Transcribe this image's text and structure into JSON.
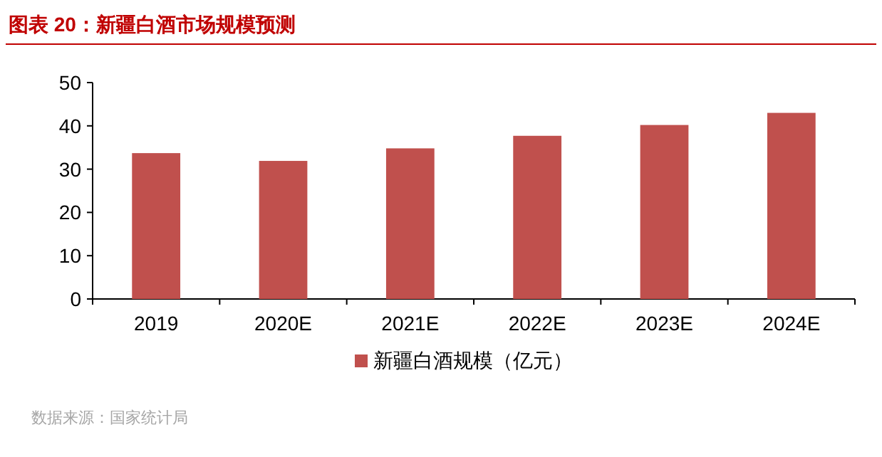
{
  "chart_data": {
    "type": "bar",
    "title": "图表 20：新疆白酒市场规模预测",
    "categories": [
      "2019",
      "2020E",
      "2021E",
      "2022E",
      "2023E",
      "2024E"
    ],
    "series": [
      {
        "name": "新疆白酒规模（亿元）",
        "color": "#c0504d",
        "values": [
          33.7,
          31.9,
          34.8,
          37.7,
          40.2,
          43.0
        ]
      }
    ],
    "ylim": [
      0,
      50
    ],
    "yticks": [
      0,
      10,
      20,
      30,
      40,
      50
    ],
    "grid": false,
    "legend": "bottom",
    "annotations": [
      "数据来源：国家统计局"
    ]
  }
}
